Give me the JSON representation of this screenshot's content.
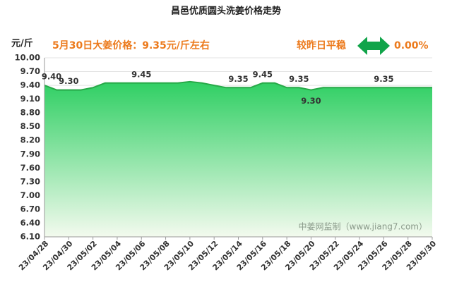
{
  "chart_data": {
    "type": "area",
    "title": "昌邑优质圆头洗姜价格走势",
    "y_unit": "元/斤",
    "annotations": {
      "price_note": "5月30日大姜价格：9.35元/斤左右",
      "change_label": "较昨日平稳",
      "change_value": "0.00%",
      "watermark": "中姜网监制（www.jiang7.com）"
    },
    "categories": [
      "23/04/28",
      null,
      "23/04/30",
      null,
      "23/05/02",
      null,
      "23/05/04",
      null,
      "23/05/06",
      null,
      "23/05/08",
      null,
      "23/05/10",
      null,
      "23/05/12",
      null,
      "23/05/14",
      null,
      "23/05/16",
      null,
      "23/05/18",
      null,
      "23/05/20",
      null,
      "23/05/22",
      null,
      "23/05/24",
      null,
      "23/05/26",
      null,
      "23/05/28",
      null,
      "23/05/30"
    ],
    "values": [
      9.4,
      9.3,
      9.3,
      9.3,
      9.35,
      9.45,
      9.45,
      9.45,
      9.45,
      9.45,
      9.45,
      9.45,
      9.48,
      9.45,
      9.4,
      9.35,
      9.35,
      9.35,
      9.45,
      9.45,
      9.35,
      9.35,
      9.3,
      9.35,
      9.35,
      9.35,
      9.35,
      9.35,
      9.35,
      9.35,
      9.35,
      9.35,
      9.35
    ],
    "value_labels": [
      "9.40",
      null,
      "9.30",
      null,
      null,
      null,
      null,
      null,
      "9.45",
      null,
      null,
      null,
      null,
      null,
      null,
      null,
      "9.35",
      null,
      "9.45",
      null,
      null,
      "9.35",
      "9.30",
      null,
      null,
      null,
      null,
      null,
      "9.35",
      null,
      null,
      null,
      null
    ],
    "color": "#27a948",
    "fill_colors": [
      "#2fcf63",
      "#f3faee"
    ],
    "ylim": [
      6.1,
      10.0
    ],
    "yticks": [
      {
        "value": 6.1,
        "label": "6.10"
      },
      {
        "value": 6.4,
        "label": "6.40"
      },
      {
        "value": 6.7,
        "label": "6.70"
      },
      {
        "value": 7.0,
        "label": "7.00"
      },
      {
        "value": 7.3,
        "label": "7.30"
      },
      {
        "value": 7.6,
        "label": "7.60"
      },
      {
        "value": 7.9,
        "label": "7.90"
      },
      {
        "value": 8.2,
        "label": "8.20"
      },
      {
        "value": 8.5,
        "label": "8.50"
      },
      {
        "value": 8.8,
        "label": "8.80"
      },
      {
        "value": 9.1,
        "label": "9.10"
      },
      {
        "value": 9.4,
        "label": "9.40"
      },
      {
        "value": 9.7,
        "label": "9.70"
      },
      {
        "value": 10.0,
        "label": "10.00"
      }
    ],
    "grid": true
  }
}
